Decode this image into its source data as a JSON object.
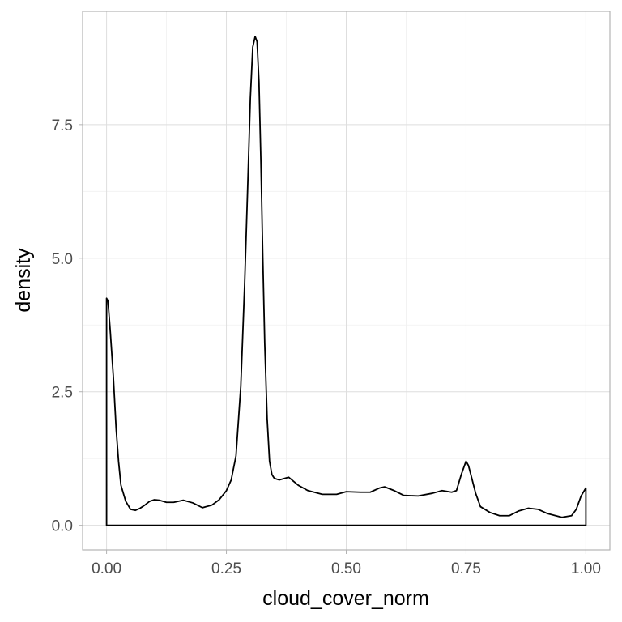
{
  "chart_data": {
    "type": "area",
    "xlabel": "cloud_cover_norm",
    "ylabel": "density",
    "xlim": [
      -0.05,
      1.05
    ],
    "ylim": [
      -0.46,
      9.62
    ],
    "x_ticks": [
      0,
      0.25,
      0.5,
      0.75,
      1
    ],
    "x_tick_labels": [
      "0.00",
      "0.25",
      "0.50",
      "0.75",
      "1.00"
    ],
    "y_ticks": [
      0,
      2.5,
      5,
      7.5
    ],
    "y_tick_labels": [
      "0.0",
      "2.5",
      "5.0",
      "7.5"
    ],
    "grid": true,
    "legend": "none",
    "line_color": "#000000",
    "fill": "none",
    "series": [
      {
        "x": [
          0,
          0.003,
          0.008,
          0.014,
          0.02,
          0.025,
          0.03,
          0.04,
          0.05,
          0.06,
          0.07,
          0.08,
          0.09,
          0.1,
          0.11,
          0.125,
          0.14,
          0.16,
          0.18,
          0.2,
          0.22,
          0.235,
          0.25,
          0.26,
          0.27,
          0.28,
          0.288,
          0.295,
          0.3,
          0.305,
          0.31,
          0.314,
          0.318,
          0.322,
          0.326,
          0.33,
          0.335,
          0.34,
          0.345,
          0.35,
          0.36,
          0.38,
          0.4,
          0.42,
          0.45,
          0.48,
          0.5,
          0.53,
          0.55,
          0.57,
          0.58,
          0.6,
          0.62,
          0.65,
          0.68,
          0.7,
          0.72,
          0.73,
          0.74,
          0.75,
          0.755,
          0.76,
          0.77,
          0.78,
          0.8,
          0.82,
          0.84,
          0.86,
          0.88,
          0.9,
          0.92,
          0.95,
          0.97,
          0.98,
          0.99,
          1.0
        ],
        "y": [
          4.25,
          4.2,
          3.6,
          2.8,
          1.8,
          1.2,
          0.75,
          0.45,
          0.3,
          0.28,
          0.32,
          0.38,
          0.45,
          0.48,
          0.47,
          0.43,
          0.43,
          0.47,
          0.42,
          0.33,
          0.38,
          0.48,
          0.65,
          0.85,
          1.3,
          2.6,
          4.5,
          6.5,
          8.0,
          8.95,
          9.15,
          9.05,
          8.3,
          6.8,
          5.0,
          3.4,
          2.0,
          1.2,
          0.95,
          0.88,
          0.85,
          0.9,
          0.75,
          0.65,
          0.58,
          0.58,
          0.63,
          0.62,
          0.62,
          0.7,
          0.72,
          0.65,
          0.56,
          0.55,
          0.6,
          0.65,
          0.62,
          0.65,
          0.95,
          1.2,
          1.12,
          0.95,
          0.6,
          0.35,
          0.24,
          0.18,
          0.18,
          0.27,
          0.32,
          0.3,
          0.22,
          0.15,
          0.18,
          0.3,
          0.55,
          0.7
        ]
      }
    ]
  }
}
